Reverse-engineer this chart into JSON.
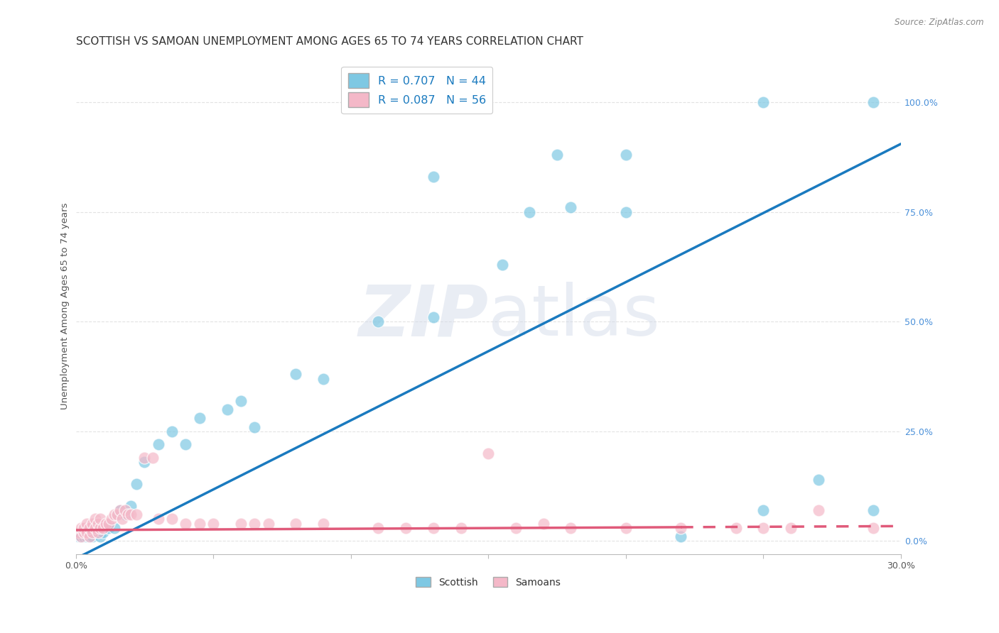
{
  "title": "SCOTTISH VS SAMOAN UNEMPLOYMENT AMONG AGES 65 TO 74 YEARS CORRELATION CHART",
  "source": "Source: ZipAtlas.com",
  "xlabel": "",
  "ylabel": "Unemployment Among Ages 65 to 74 years",
  "xlim": [
    0.0,
    0.3
  ],
  "ylim": [
    -0.03,
    1.1
  ],
  "xticks": [
    0.0,
    0.05,
    0.1,
    0.15,
    0.2,
    0.25,
    0.3
  ],
  "xticklabels": [
    "0.0%",
    "",
    "",
    "",
    "",
    "",
    "30.0%"
  ],
  "yticks_right": [
    0.0,
    0.25,
    0.5,
    0.75,
    1.0
  ],
  "ytick_right_labels": [
    "0.0%",
    "25.0%",
    "50.0%",
    "75.0%",
    "100.0%"
  ],
  "scottish_color": "#7ec8e3",
  "samoan_color": "#f4b8c8",
  "scottish_R": 0.707,
  "scottish_N": 44,
  "samoan_R": 0.087,
  "samoan_N": 56,
  "legend_label1": "Scottish",
  "legend_label2": "Samoans",
  "scottish_line_slope": 3.15,
  "scottish_line_intercept": -0.04,
  "samoan_line_slope": 0.03,
  "samoan_line_intercept": 0.025,
  "scottish_x": [
    0.001,
    0.002,
    0.003,
    0.003,
    0.004,
    0.005,
    0.005,
    0.006,
    0.007,
    0.008,
    0.009,
    0.01,
    0.012,
    0.014,
    0.015,
    0.016,
    0.018,
    0.02,
    0.022,
    0.025,
    0.03,
    0.035,
    0.04,
    0.045,
    0.055,
    0.06,
    0.065,
    0.08,
    0.09,
    0.11,
    0.13,
    0.155,
    0.18,
    0.2,
    0.22,
    0.25,
    0.27,
    0.29,
    0.13,
    0.165,
    0.175,
    0.2,
    0.25,
    0.29
  ],
  "scottish_y": [
    0.01,
    0.01,
    0.02,
    0.01,
    0.01,
    0.01,
    0.02,
    0.01,
    0.02,
    0.02,
    0.01,
    0.02,
    0.03,
    0.03,
    0.06,
    0.07,
    0.06,
    0.08,
    0.13,
    0.18,
    0.22,
    0.25,
    0.22,
    0.28,
    0.3,
    0.32,
    0.26,
    0.38,
    0.37,
    0.5,
    0.51,
    0.63,
    0.76,
    0.75,
    0.01,
    0.07,
    0.14,
    0.07,
    0.83,
    0.75,
    0.88,
    0.88,
    1.0,
    1.0
  ],
  "samoan_x": [
    0.001,
    0.002,
    0.002,
    0.003,
    0.003,
    0.004,
    0.004,
    0.005,
    0.005,
    0.006,
    0.006,
    0.007,
    0.007,
    0.008,
    0.008,
    0.009,
    0.009,
    0.01,
    0.011,
    0.012,
    0.013,
    0.014,
    0.015,
    0.016,
    0.017,
    0.018,
    0.019,
    0.02,
    0.022,
    0.025,
    0.028,
    0.03,
    0.035,
    0.04,
    0.045,
    0.05,
    0.06,
    0.065,
    0.07,
    0.08,
    0.09,
    0.11,
    0.13,
    0.15,
    0.16,
    0.17,
    0.18,
    0.2,
    0.22,
    0.24,
    0.12,
    0.14,
    0.25,
    0.26,
    0.27,
    0.29
  ],
  "samoan_y": [
    0.02,
    0.01,
    0.03,
    0.02,
    0.03,
    0.02,
    0.04,
    0.01,
    0.03,
    0.02,
    0.04,
    0.03,
    0.05,
    0.02,
    0.04,
    0.03,
    0.05,
    0.03,
    0.04,
    0.04,
    0.05,
    0.06,
    0.06,
    0.07,
    0.05,
    0.07,
    0.06,
    0.06,
    0.06,
    0.19,
    0.19,
    0.05,
    0.05,
    0.04,
    0.04,
    0.04,
    0.04,
    0.04,
    0.04,
    0.04,
    0.04,
    0.03,
    0.03,
    0.2,
    0.03,
    0.04,
    0.03,
    0.03,
    0.03,
    0.03,
    0.03,
    0.03,
    0.03,
    0.03,
    0.07,
    0.03
  ],
  "background_color": "#ffffff",
  "grid_color": "#e0e0e0",
  "title_fontsize": 11,
  "axis_label_fontsize": 9.5,
  "tick_fontsize": 9
}
